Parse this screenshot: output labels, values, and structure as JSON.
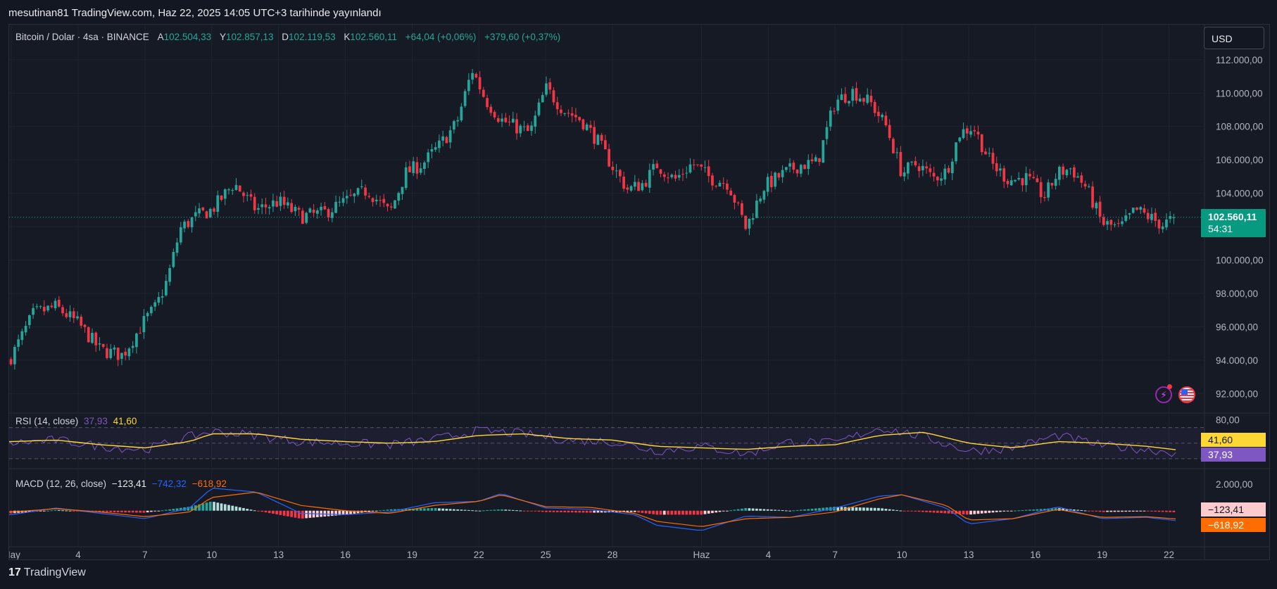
{
  "header": {
    "text": "mesutinan81 TradingView.com, Haz 22, 2025 14:05 UTC+3 tarihinde yayınlandı"
  },
  "legend": {
    "symbol": "Bitcoin / Dolar · 4sa · BINANCE",
    "open_label": "A",
    "open": "102.504,33",
    "high_label": "Y",
    "high": "102.857,13",
    "low_label": "D",
    "low": "102.119,53",
    "close_label": "K",
    "close": "102.560,11",
    "change": "+64,04 (+0,06%)",
    "change2": "+379,60 (+0,37%)"
  },
  "currency_button": "USD",
  "last_price": {
    "value": "102.560,11",
    "countdown": "54:31"
  },
  "rsi": {
    "label": "RSI (14, close)",
    "value": "37,93",
    "ma_value": "41,60",
    "tag_value": "37,93",
    "tag_ma": "41,60"
  },
  "macd": {
    "label": "MACD (12, 26, close)",
    "hist": "−123,41",
    "macd": "−742,32",
    "signal": "−618,92",
    "tag_hist": "−123,41",
    "tag_signal": "−618,92"
  },
  "brand": {
    "logo": "17",
    "name": "TradingView"
  },
  "colors": {
    "up": "#26a69a",
    "down": "#f23645",
    "rsi_line": "#7e57c2",
    "rsi_ma": "#fdd835",
    "macd_line": "#2962ff",
    "signal_line": "#ff6d00",
    "price_tag": "#089981"
  },
  "chart_data": [
    {
      "type": "candlestick",
      "title": "Bitcoin / Dolar · 4sa · BINANCE",
      "ylim": [
        91000,
        112500
      ],
      "y_ticks": [
        "112.000,00",
        "110.000,00",
        "108.000,00",
        "106.000,00",
        "104.000,00",
        "102.000,00",
        "100.000,00",
        "98.000,00",
        "96.000,00",
        "94.000,00",
        "92.000,00"
      ],
      "y_tick_values": [
        112000,
        110000,
        108000,
        106000,
        104000,
        102000,
        100000,
        98000,
        96000,
        94000,
        92000
      ],
      "x_ticks": [
        "May",
        "4",
        "7",
        "10",
        "13",
        "16",
        "19",
        "22",
        "25",
        "28",
        "Haz",
        "4",
        "7",
        "10",
        "13",
        "16",
        "19",
        "22"
      ],
      "x_tick_days": [
        1,
        4,
        7,
        10,
        13,
        16,
        19,
        22,
        25,
        28,
        32,
        35,
        38,
        41,
        44,
        47,
        50,
        53
      ],
      "path_days": [
        1,
        2,
        3,
        4,
        5,
        6,
        7,
        7.5,
        8,
        8.6,
        9.3,
        10,
        11,
        12,
        13,
        14,
        15,
        16,
        17,
        18,
        18.7,
        19.5,
        20.2,
        21,
        21.7,
        22.3,
        23,
        23.6,
        24.3,
        25,
        25.8,
        26.6,
        27.3,
        28,
        28.7,
        29.4,
        30,
        30.8,
        31.6,
        32.4,
        33.2,
        34,
        34.8,
        35.6,
        36.4,
        37.2,
        38,
        38.8,
        39.6,
        40.3,
        41,
        41.7,
        42.4,
        43,
        43.6,
        44.2,
        45,
        45.8,
        46.6,
        47.4,
        48,
        48.6,
        49.3,
        50,
        50.8,
        51.5,
        52.2,
        52.7,
        53.3
      ],
      "path_closes": [
        94200,
        96800,
        97200,
        96200,
        94600,
        94300,
        96400,
        97200,
        98800,
        101900,
        102600,
        103000,
        104600,
        103000,
        103500,
        102600,
        102800,
        103500,
        104200,
        102800,
        105200,
        105800,
        106800,
        108200,
        111400,
        109600,
        108400,
        108000,
        107600,
        110300,
        109000,
        108400,
        107200,
        105600,
        104200,
        104600,
        105700,
        104800,
        105800,
        104900,
        104600,
        101900,
        104400,
        105100,
        105700,
        105800,
        109500,
        110100,
        109400,
        108000,
        105200,
        105800,
        104900,
        105300,
        107600,
        108000,
        105800,
        104800,
        104900,
        103800,
        105200,
        105500,
        104300,
        102200,
        101900,
        103000,
        102500,
        102100,
        102560
      ],
      "last": {
        "open": 102504.33,
        "high": 102857.13,
        "low": 102119.53,
        "close": 102560.11
      }
    },
    {
      "type": "line",
      "title": "RSI (14, close)",
      "ylim": [
        20,
        85
      ],
      "y_ticks": [
        "80,00"
      ],
      "y_tick_values": [
        80
      ],
      "bands": [
        70,
        50,
        30
      ],
      "series": [
        {
          "name": "RSI",
          "days": [
            1,
            3,
            5,
            7,
            9,
            10,
            12,
            14,
            16,
            18,
            20,
            22,
            24,
            26,
            28,
            30,
            32,
            34,
            36,
            38,
            40,
            42,
            44,
            46,
            48,
            50,
            52,
            53.3
          ],
          "values": [
            50,
            54,
            46,
            42,
            58,
            65,
            60,
            52,
            50,
            48,
            55,
            66,
            62,
            54,
            52,
            40,
            46,
            36,
            52,
            50,
            70,
            58,
            40,
            44,
            60,
            47,
            42,
            37.93
          ]
        },
        {
          "name": "RSI MA",
          "days": [
            1,
            3,
            5,
            7,
            9,
            10,
            12,
            14,
            16,
            18,
            20,
            22,
            24,
            26,
            28,
            30,
            32,
            34,
            36,
            38,
            40,
            42,
            44,
            46,
            48,
            50,
            52,
            53.3
          ],
          "values": [
            52,
            54,
            48,
            44,
            52,
            62,
            62,
            55,
            52,
            50,
            52,
            60,
            62,
            56,
            54,
            46,
            44,
            42,
            46,
            48,
            60,
            64,
            50,
            44,
            52,
            50,
            46,
            41.6
          ]
        }
      ]
    },
    {
      "type": "bar",
      "title": "MACD (12, 26, close)",
      "ylim": [
        -2500,
        3000
      ],
      "y_ticks": [
        "2.000,00"
      ],
      "y_tick_values": [
        2000
      ],
      "series": [
        {
          "name": "MACD",
          "days": [
            1,
            3,
            5,
            7,
            9,
            10,
            12,
            14,
            16,
            18,
            20,
            22,
            23,
            25,
            27,
            29,
            30,
            32,
            34,
            36,
            38,
            40,
            41,
            43,
            44,
            46,
            48,
            50,
            52,
            53.3
          ],
          "values": [
            -300,
            200,
            -200,
            -600,
            200,
            1700,
            1400,
            -200,
            -300,
            -100,
            600,
            700,
            1300,
            200,
            100,
            -300,
            -1100,
            -1500,
            -400,
            -500,
            200,
            1100,
            1200,
            200,
            -1000,
            -600,
            300,
            -600,
            -500,
            -742.32
          ]
        },
        {
          "name": "Signal",
          "days": [
            1,
            3,
            5,
            7,
            9,
            10,
            12,
            14,
            16,
            18,
            20,
            22,
            23,
            25,
            27,
            29,
            30,
            32,
            34,
            36,
            38,
            40,
            41,
            43,
            44,
            46,
            48,
            50,
            52,
            53.3
          ],
          "values": [
            -100,
            150,
            -100,
            -450,
            -100,
            1000,
            1400,
            400,
            0,
            -200,
            400,
            700,
            1200,
            300,
            250,
            -200,
            -800,
            -1200,
            -600,
            -500,
            -100,
            900,
            1200,
            400,
            -700,
            -600,
            100,
            -500,
            -450,
            -618.92
          ]
        }
      ]
    }
  ]
}
